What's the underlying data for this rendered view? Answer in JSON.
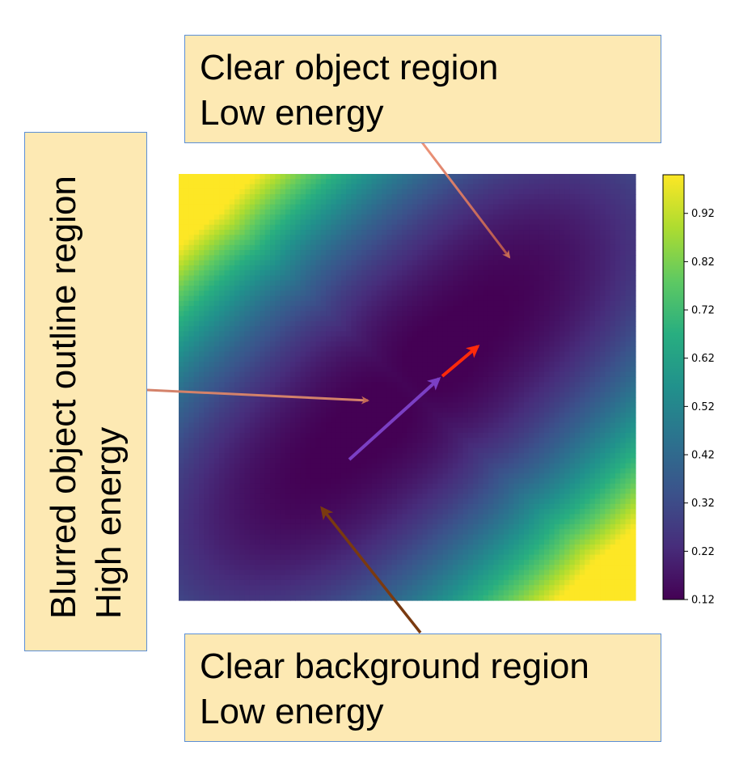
{
  "chart_data": {
    "type": "heatmap",
    "title": "",
    "xlabel": "",
    "ylabel": "",
    "colormap": "viridis",
    "value_range": [
      0.12,
      1.0
    ],
    "colorbar_ticks": [
      "0.12",
      "0.22",
      "0.32",
      "0.42",
      "0.52",
      "0.62",
      "0.72",
      "0.82",
      "0.92"
    ],
    "colorbar_tick_values": [
      0.12,
      0.22,
      0.32,
      0.42,
      0.52,
      0.62,
      0.72,
      0.82,
      0.92
    ],
    "minima": [
      {
        "name": "clear-object-minimum",
        "x": 0.68,
        "y": 0.68,
        "value": 0.12
      },
      {
        "name": "clear-background-minimum",
        "x": 0.32,
        "y": 0.32,
        "value": 0.12
      }
    ],
    "axes_ticks_shown": false,
    "grid": false
  },
  "annotations": {
    "top": {
      "line1": "Clear object region",
      "line2": "Low energy",
      "arrow_color": "#f0977a"
    },
    "left": {
      "line1": "Blurred object outline region",
      "line2": "High energy",
      "arrow_color": "#f0977a"
    },
    "bottom": {
      "line1": "Clear background region",
      "line2": "Low energy",
      "arrow_color": "#7a3a10"
    }
  },
  "path_arrows": {
    "colors": [
      "#7b3fc4",
      "#ff2a0a"
    ]
  },
  "colors": {
    "callout_fill": "#fde9b3",
    "callout_border": "#5b8fd6"
  }
}
